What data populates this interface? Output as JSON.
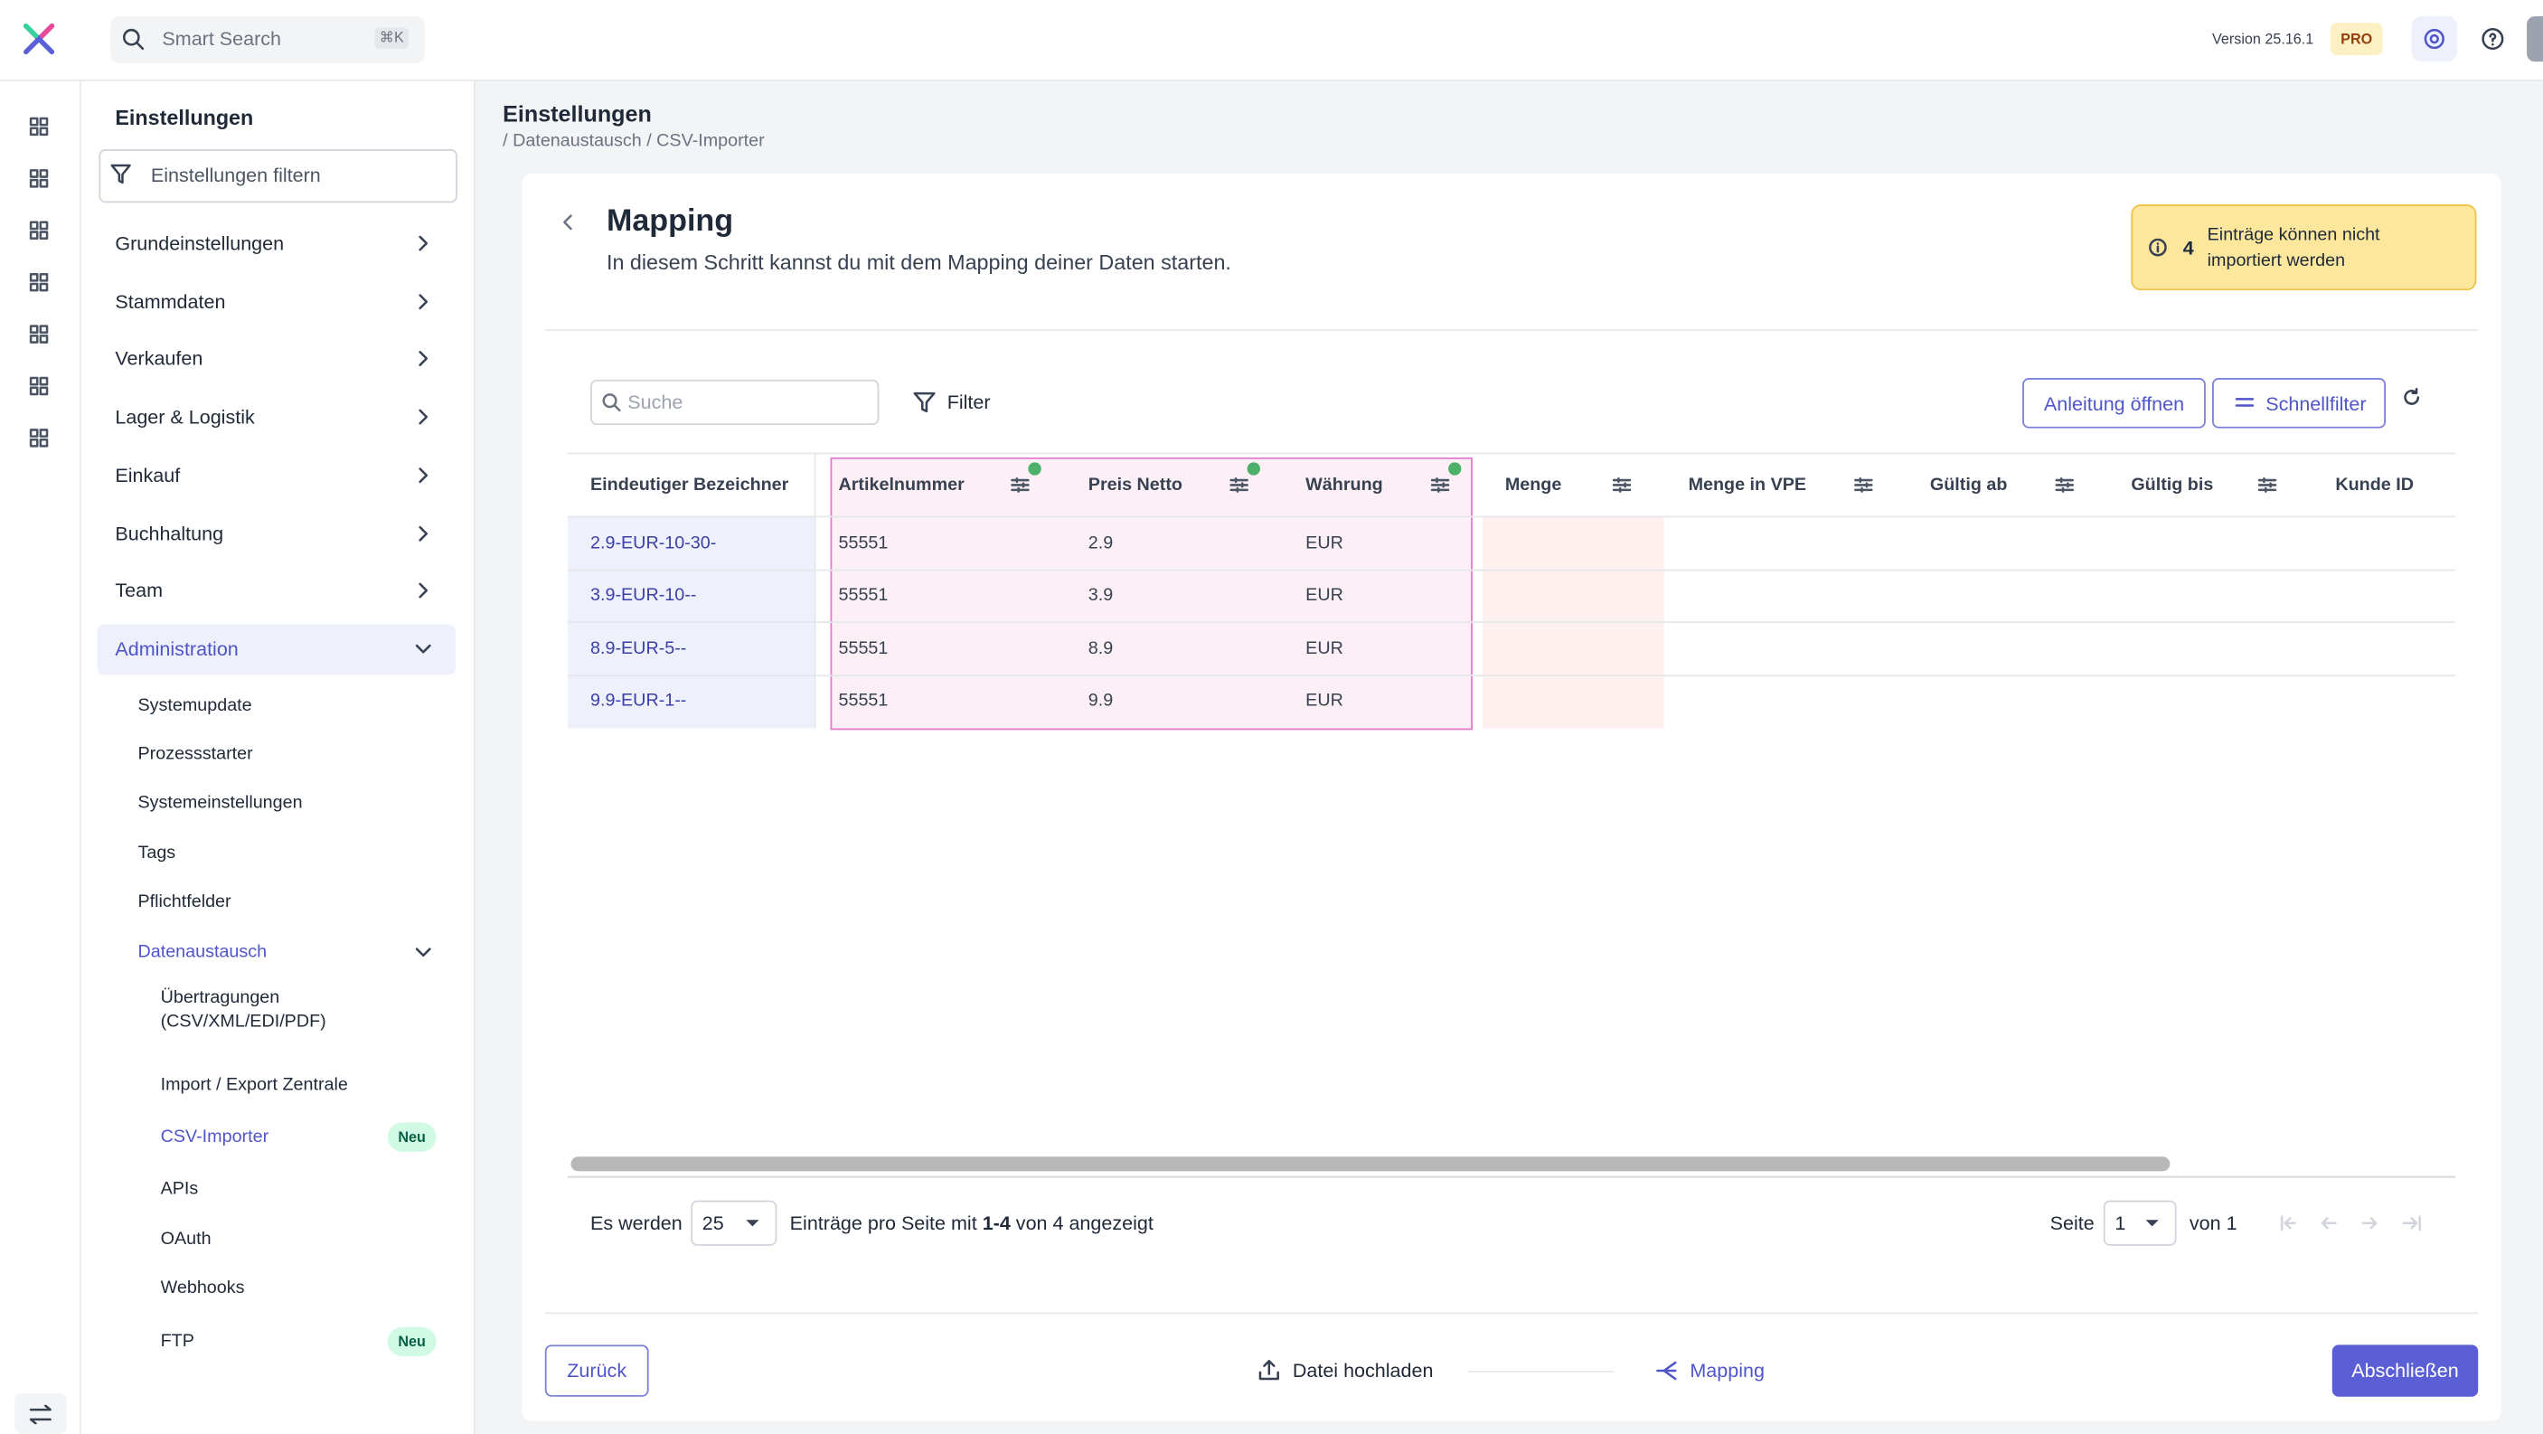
{
  "header": {
    "search_placeholder": "Smart Search",
    "shortcut": "⌘K",
    "version": "Version 25.16.1",
    "plan": "PRO"
  },
  "sidebar": {
    "title": "Einstellungen",
    "filter_placeholder": "Einstellungen filtern",
    "sections": [
      "Grundeinstellungen",
      "Stammdaten",
      "Verkaufen",
      "Lager & Logistik",
      "Einkauf",
      "Buchhaltung",
      "Team",
      "Administration"
    ],
    "administration": [
      "Systemupdate",
      "Prozessstarter",
      "Systemeinstellungen",
      "Tags",
      "Pflichtfelder",
      "Datenaustausch"
    ],
    "datenaustausch": [
      "Übertragungen (CSV/XML/EDI/PDF)",
      "Import / Export Zentrale",
      "CSV-Importer",
      "APIs",
      "OAuth",
      "Webhooks",
      "FTP"
    ],
    "badge": "Neu"
  },
  "page": {
    "title": "Einstellungen",
    "breadcrumb": "/ Datenaustausch / CSV-Importer"
  },
  "card": {
    "title": "Mapping",
    "subtitle": "In diesem Schritt kannst du mit dem Mapping deiner Daten starten.",
    "alert_count": "4",
    "alert_text": "Einträge können nicht importiert werden"
  },
  "toolbar": {
    "search_placeholder": "Suche",
    "filter": "Filter",
    "guide": "Anleitung öffnen",
    "quickfilter": "Schnellfilter"
  },
  "table": {
    "columns": [
      "Eindeutiger Bezeichner",
      "Artikelnummer",
      "Preis Netto",
      "Währung",
      "Menge",
      "Menge in VPE",
      "Gültig ab",
      "Gültig bis",
      "Kunde ID"
    ],
    "rows": [
      [
        "2.9-EUR-10-30-",
        "55551",
        "2.9",
        "EUR"
      ],
      [
        "3.9-EUR-10--",
        "55551",
        "3.9",
        "EUR"
      ],
      [
        "8.9-EUR-5--",
        "55551",
        "8.9",
        "EUR"
      ],
      [
        "9.9-EUR-1--",
        "55551",
        "9.9",
        "EUR"
      ]
    ]
  },
  "pagination": {
    "prefix": "Es werden",
    "page_size": "25",
    "middle": "Einträge pro Seite mit",
    "range": "1-4",
    "suffix": "von 4 angezeigt",
    "page_label": "Seite",
    "page": "1",
    "page_total": "von 1"
  },
  "footer": {
    "back": "Zurück",
    "step1": "Datei hochladen",
    "step2": "Mapping",
    "finish": "Abschließen"
  }
}
